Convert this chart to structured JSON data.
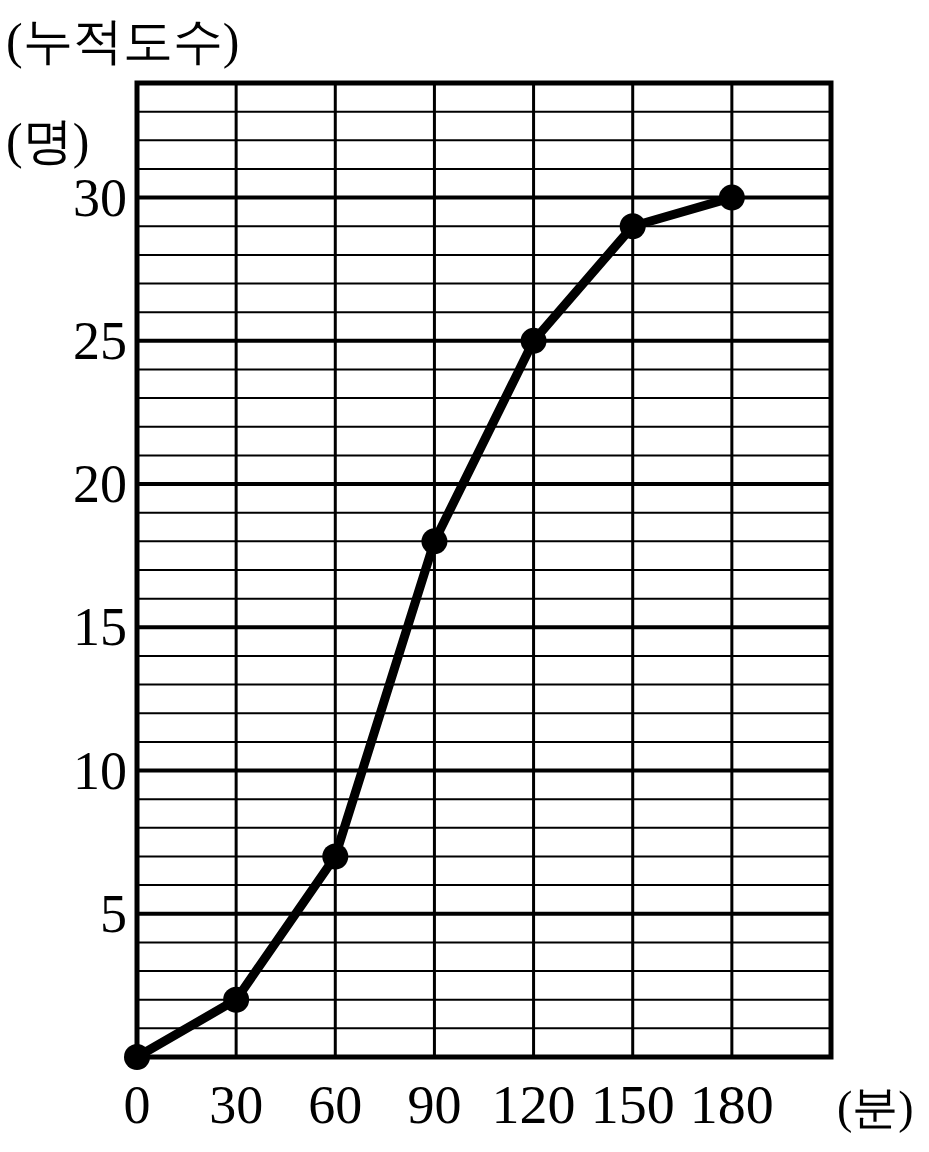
{
  "chart_data": {
    "type": "line",
    "ylabel": "(누적도수)",
    "xlabel": "(분)",
    "annotations": [
      "(명)"
    ],
    "x": [
      0,
      30,
      60,
      90,
      120,
      150,
      180
    ],
    "series": [
      {
        "color": "#000000",
        "values": [
          0,
          2,
          7,
          18,
          25,
          29,
          30
        ]
      }
    ],
    "xlim": [
      0,
      210
    ],
    "ylim": [
      0,
      34
    ],
    "xticks": [
      0,
      30,
      60,
      90,
      120,
      150,
      180,
      {
        "value": 210,
        "label": null
      }
    ],
    "yticks": [
      {
        "value": 1,
        "label": null
      },
      {
        "value": 2,
        "label": null
      },
      {
        "value": 3,
        "label": null
      },
      {
        "value": 4,
        "label": null
      },
      5,
      {
        "value": 6,
        "label": null
      },
      {
        "value": 7,
        "label": null
      },
      {
        "value": 8,
        "label": null
      },
      {
        "value": 9,
        "label": null
      },
      10,
      {
        "value": 11,
        "label": null
      },
      {
        "value": 12,
        "label": null
      },
      {
        "value": 13,
        "label": null
      },
      {
        "value": 14,
        "label": null
      },
      15,
      {
        "value": 16,
        "label": null
      },
      {
        "value": 17,
        "label": null
      },
      {
        "value": 18,
        "label": null
      },
      {
        "value": 19,
        "label": null
      },
      20,
      {
        "value": 21,
        "label": null
      },
      {
        "value": 22,
        "label": null
      },
      {
        "value": 23,
        "label": null
      },
      {
        "value": 24,
        "label": null
      },
      25,
      {
        "value": 26,
        "label": null
      },
      {
        "value": 27,
        "label": null
      },
      {
        "value": 28,
        "label": null
      },
      {
        "value": 29,
        "label": null
      },
      30,
      {
        "value": 31,
        "label": null
      },
      {
        "value": 32,
        "label": null
      },
      {
        "value": 33,
        "label": null
      },
      {
        "value": 34,
        "label": null
      }
    ],
    "grid": true,
    "marker": "circle",
    "line_style": "solid"
  }
}
